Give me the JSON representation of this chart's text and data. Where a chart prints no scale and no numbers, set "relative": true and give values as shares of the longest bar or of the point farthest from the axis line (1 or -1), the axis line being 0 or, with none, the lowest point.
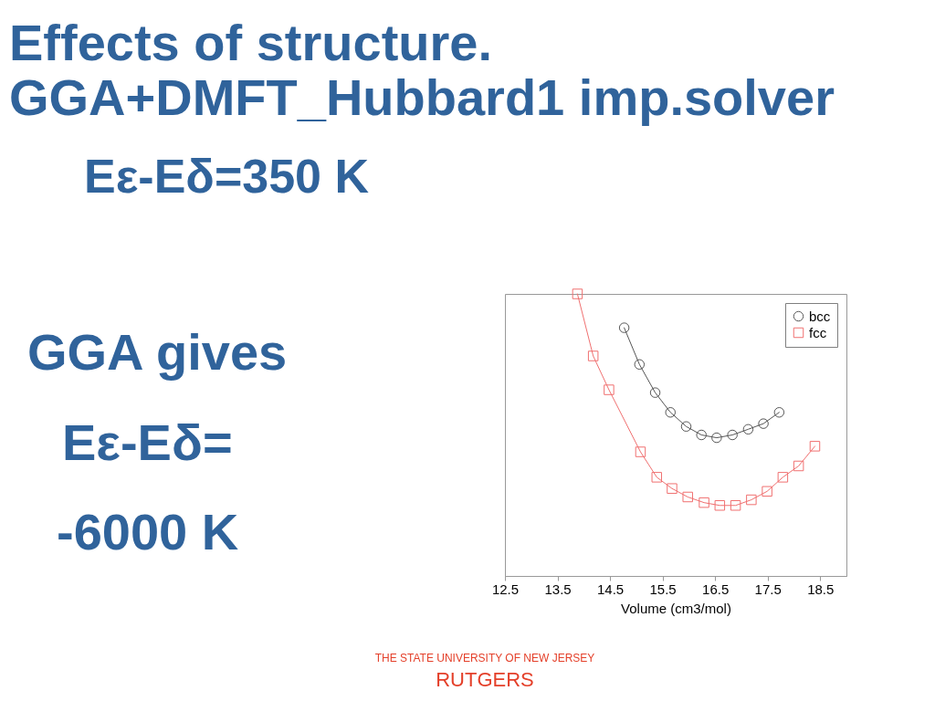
{
  "chart_data": {
    "type": "line",
    "title": "Effects of structure.\nGGA+DMFT_Hubbard1  imp.solver",
    "xlabel": "Volume (cm3/mol)",
    "relative": true,
    "xlim": [
      12.5,
      19
    ],
    "xticks": [
      12.5,
      13.5,
      14.5,
      15.5,
      16.5,
      17.5,
      18.5
    ],
    "legend": "top right",
    "series": [
      {
        "name": "bcc",
        "color": "#555555",
        "marker": "circle",
        "x": [
          14.77,
          15.06,
          15.36,
          15.65,
          15.95,
          16.24,
          16.53,
          16.83,
          17.13,
          17.42,
          17.72
        ],
        "values": [
          0.88,
          0.75,
          0.65,
          0.58,
          0.53,
          0.5,
          0.49,
          0.5,
          0.52,
          0.54,
          0.58
        ]
      },
      {
        "name": "fcc",
        "color": "#f07070",
        "marker": "square",
        "x": [
          13.88,
          14.18,
          14.48,
          15.08,
          15.39,
          15.68,
          15.98,
          16.29,
          16.59,
          16.89,
          17.19,
          17.49,
          17.79,
          18.09,
          18.4
        ],
        "values": [
          1.0,
          0.78,
          0.66,
          0.44,
          0.35,
          0.31,
          0.28,
          0.26,
          0.25,
          0.25,
          0.27,
          0.3,
          0.35,
          0.39,
          0.46
        ]
      }
    ],
    "annotations": [
      "Eε-Eδ=350 K",
      "GGA gives",
      "Eε-Eδ=",
      "-6000 K",
      "THE STATE UNIVERSITY OF NEW JERSEY",
      "RUTGERS"
    ]
  }
}
